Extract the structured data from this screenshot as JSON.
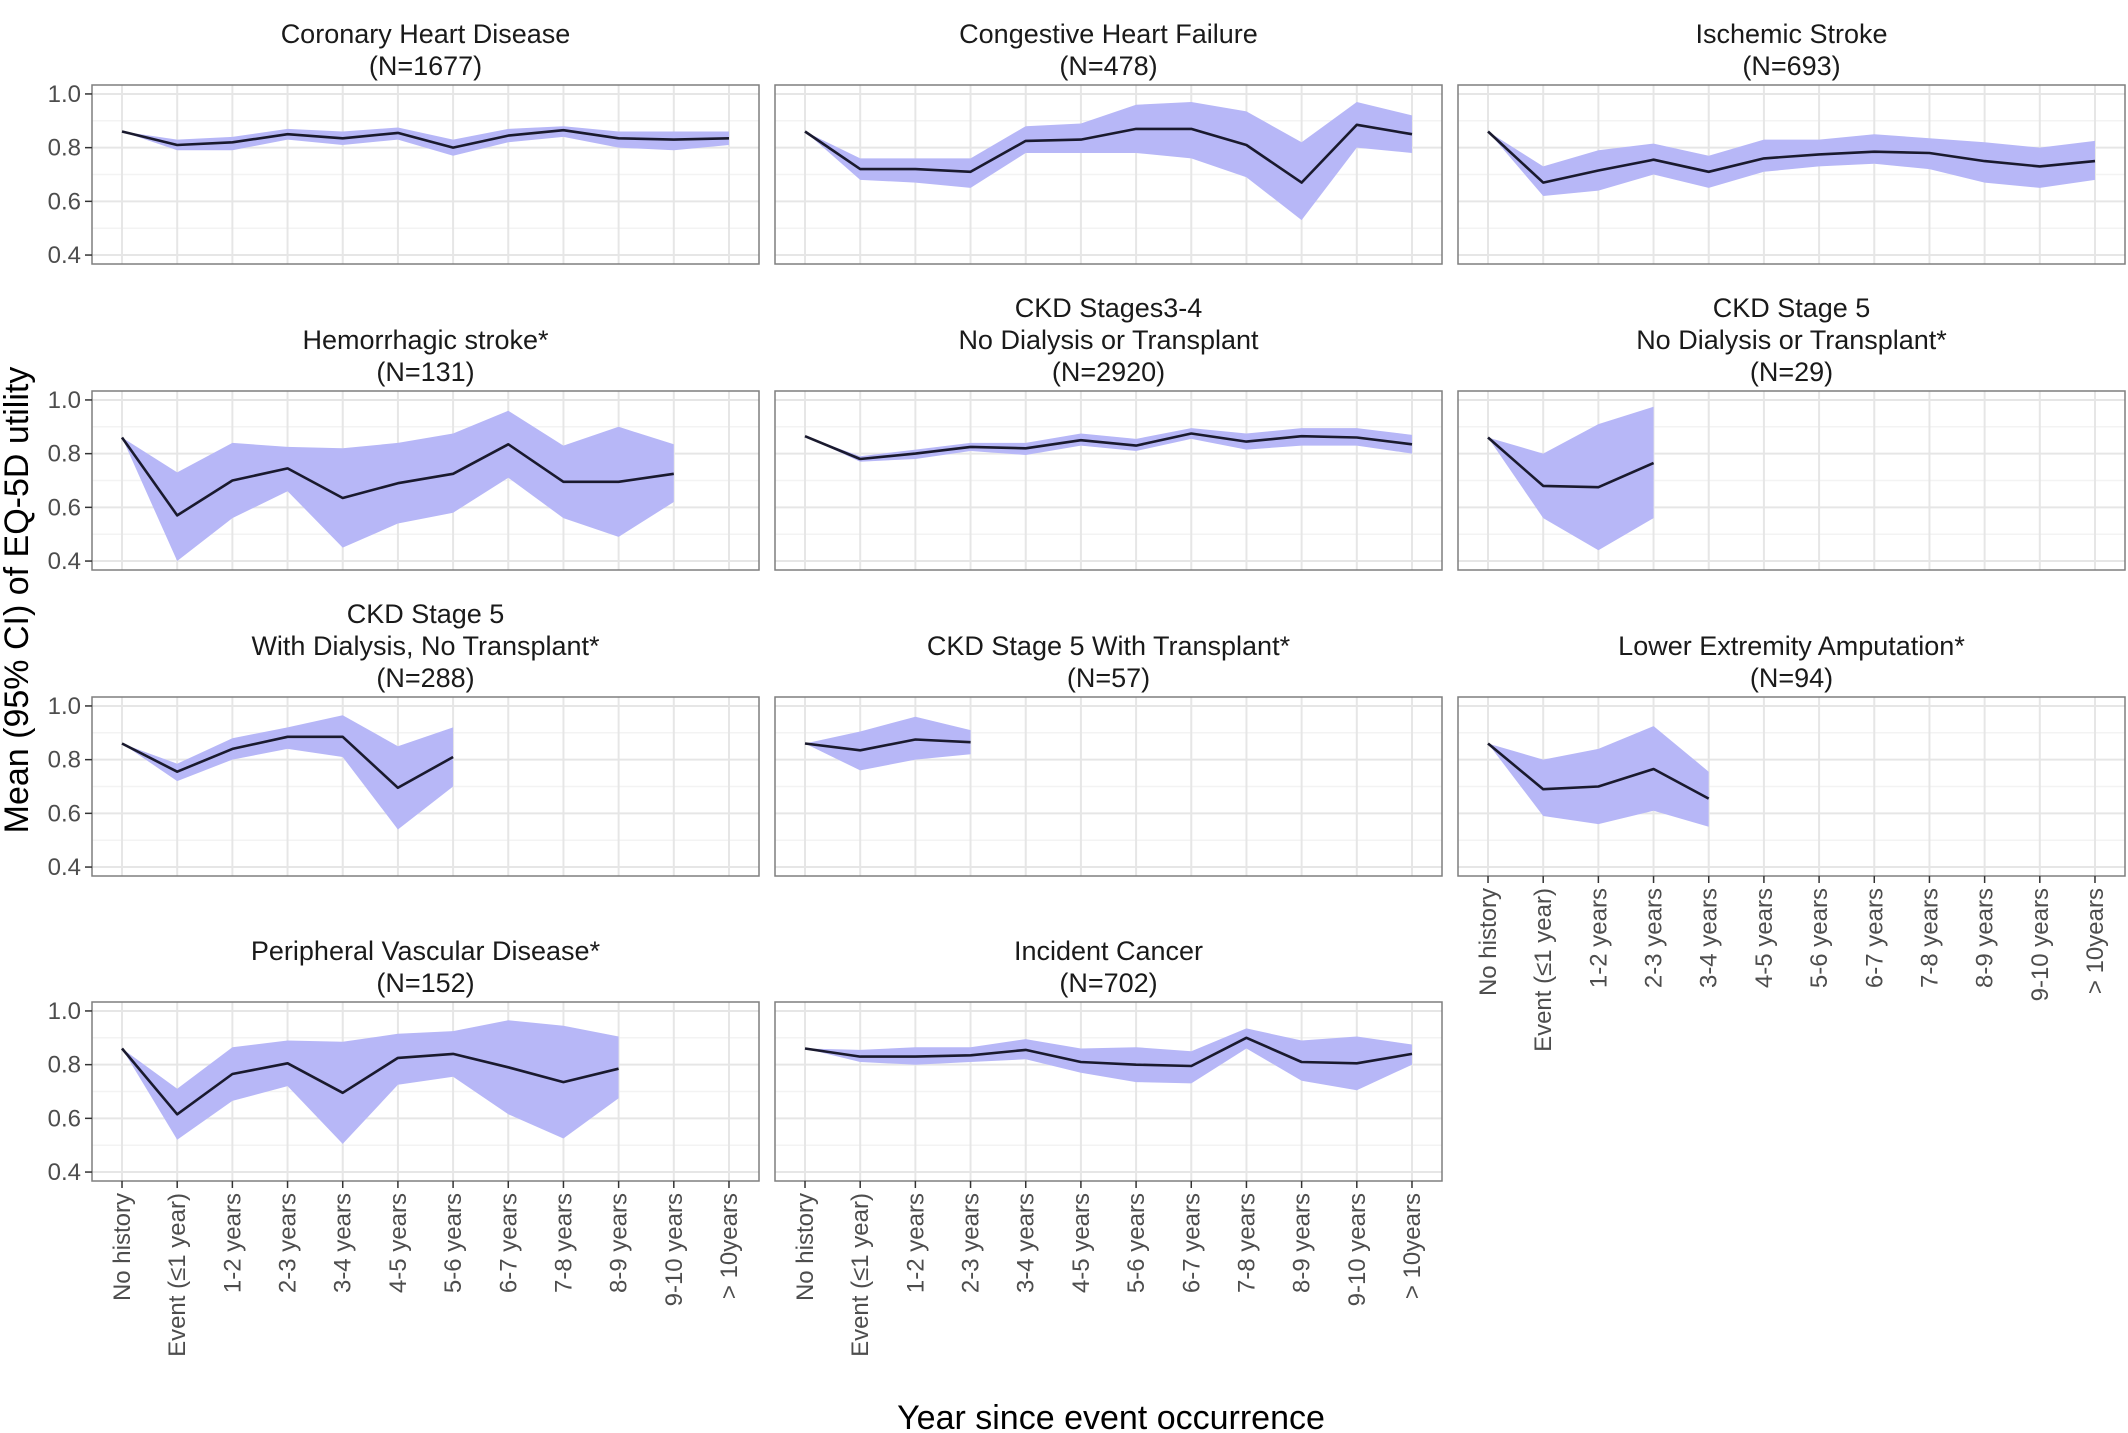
{
  "figure": {
    "xlabel": "Year since event occurrence",
    "ylabel": "Mean (95% CI) of EQ-5D utility",
    "colors": {
      "ribbon": "#b7b7f7",
      "line": "#1a1a2e",
      "panel_border": "#7f7f7f",
      "grid_major": "#e6e6e6",
      "grid_minor": "#f3f3f3"
    }
  },
  "chart_data": [
    {
      "type": "line",
      "title": "Coronary Heart Disease",
      "subtitle": "(N=1677)",
      "x": [
        "No history",
        "Event (≤1 year)",
        "1-2 years",
        "2-3 years",
        "3-4 years",
        "4-5 years",
        "5-6 years",
        "6-7 years",
        "7-8 years",
        "8-9 years",
        "9-10 years",
        "> 10years"
      ],
      "ylim": [
        0.4,
        1.0
      ],
      "yticks": [
        "0.4",
        "0.6",
        "0.8",
        "1.0"
      ],
      "series": [
        {
          "mean": [
            0.86,
            0.81,
            0.82,
            0.85,
            0.835,
            0.855,
            0.8,
            0.845,
            0.865,
            0.835,
            0.83,
            0.835
          ],
          "lower": [
            0.86,
            0.79,
            0.79,
            0.83,
            0.81,
            0.83,
            0.77,
            0.82,
            0.84,
            0.8,
            0.79,
            0.81
          ],
          "upper": [
            0.86,
            0.83,
            0.84,
            0.87,
            0.86,
            0.875,
            0.83,
            0.87,
            0.88,
            0.86,
            0.86,
            0.86
          ]
        }
      ],
      "grid": true
    },
    {
      "type": "line",
      "title": "Congestive Heart Failure",
      "subtitle": "(N=478)",
      "x": [
        "No history",
        "Event (≤1 year)",
        "1-2 years",
        "2-3 years",
        "3-4 years",
        "4-5 years",
        "5-6 years",
        "6-7 years",
        "7-8 years",
        "8-9 years",
        "9-10 years",
        "> 10years"
      ],
      "ylim": [
        0.4,
        1.0
      ],
      "yticks": [
        "0.4",
        "0.6",
        "0.8",
        "1.0"
      ],
      "series": [
        {
          "mean": [
            0.86,
            0.72,
            0.72,
            0.71,
            0.825,
            0.83,
            0.87,
            0.87,
            0.81,
            0.67,
            0.885,
            0.85
          ],
          "lower": [
            0.86,
            0.68,
            0.67,
            0.65,
            0.78,
            0.78,
            0.78,
            0.76,
            0.69,
            0.53,
            0.8,
            0.78
          ],
          "upper": [
            0.86,
            0.76,
            0.76,
            0.76,
            0.88,
            0.89,
            0.96,
            0.97,
            0.935,
            0.82,
            0.97,
            0.92
          ]
        }
      ],
      "grid": true
    },
    {
      "type": "line",
      "title": "Ischemic Stroke",
      "subtitle": "(N=693)",
      "x": [
        "No history",
        "Event (≤1 year)",
        "1-2 years",
        "2-3 years",
        "3-4 years",
        "4-5 years",
        "5-6 years",
        "6-7 years",
        "7-8 years",
        "8-9 years",
        "9-10 years",
        "> 10years"
      ],
      "ylim": [
        0.4,
        1.0
      ],
      "yticks": [
        "0.4",
        "0.6",
        "0.8",
        "1.0"
      ],
      "series": [
        {
          "mean": [
            0.86,
            0.67,
            0.715,
            0.755,
            0.71,
            0.76,
            0.775,
            0.785,
            0.78,
            0.75,
            0.73,
            0.75
          ],
          "lower": [
            0.86,
            0.62,
            0.64,
            0.7,
            0.65,
            0.71,
            0.73,
            0.74,
            0.72,
            0.67,
            0.65,
            0.68
          ],
          "upper": [
            0.86,
            0.73,
            0.79,
            0.815,
            0.77,
            0.83,
            0.83,
            0.85,
            0.835,
            0.82,
            0.8,
            0.825
          ]
        }
      ],
      "grid": true
    },
    {
      "type": "line",
      "title": "Hemorrhagic stroke*",
      "subtitle": "(N=131)",
      "x": [
        "No history",
        "Event (≤1 year)",
        "1-2 years",
        "2-3 years",
        "3-4 years",
        "4-5 years",
        "5-6 years",
        "6-7 years",
        "7-8 years",
        "8-9 years",
        "9-10 years",
        "> 10years"
      ],
      "ylim": [
        0.4,
        1.0
      ],
      "yticks": [
        "0.4",
        "0.6",
        "0.8",
        "1.0"
      ],
      "series": [
        {
          "mean": [
            0.86,
            0.57,
            0.7,
            0.745,
            0.635,
            0.69,
            0.725,
            0.835,
            0.695,
            0.695,
            0.725,
            null
          ],
          "lower": [
            0.86,
            0.4,
            0.56,
            0.66,
            0.45,
            0.54,
            0.58,
            0.71,
            0.56,
            0.49,
            0.62,
            null
          ],
          "upper": [
            0.86,
            0.73,
            0.84,
            0.825,
            0.82,
            0.84,
            0.875,
            0.96,
            0.83,
            0.9,
            0.835,
            null
          ]
        }
      ],
      "grid": true
    },
    {
      "type": "line",
      "title": "CKD Stages3-4\nNo Dialysis or Transplant",
      "subtitle": "(N=2920)",
      "x": [
        "No history",
        "Event (≤1 year)",
        "1-2 years",
        "2-3 years",
        "3-4 years",
        "4-5 years",
        "5-6 years",
        "6-7 years",
        "7-8 years",
        "8-9 years",
        "9-10 years",
        "> 10years"
      ],
      "ylim": [
        0.4,
        1.0
      ],
      "yticks": [
        "0.4",
        "0.6",
        "0.8",
        "1.0"
      ],
      "series": [
        {
          "mean": [
            0.865,
            0.78,
            0.8,
            0.825,
            0.82,
            0.85,
            0.83,
            0.875,
            0.845,
            0.865,
            0.86,
            0.835
          ],
          "lower": [
            0.865,
            0.77,
            0.78,
            0.81,
            0.795,
            0.83,
            0.81,
            0.855,
            0.815,
            0.83,
            0.83,
            0.8
          ],
          "upper": [
            0.865,
            0.79,
            0.815,
            0.84,
            0.84,
            0.875,
            0.855,
            0.895,
            0.875,
            0.895,
            0.895,
            0.87
          ]
        }
      ],
      "grid": true
    },
    {
      "type": "line",
      "title": "CKD Stage 5\nNo Dialysis or Transplant*",
      "subtitle": "(N=29)",
      "x": [
        "No history",
        "Event (≤1 year)",
        "1-2 years",
        "2-3 years",
        "3-4 years",
        "4-5 years",
        "5-6 years",
        "6-7 years",
        "7-8 years",
        "8-9 years",
        "9-10 years",
        "> 10years"
      ],
      "ylim": [
        0.4,
        1.0
      ],
      "yticks": [
        "0.4",
        "0.6",
        "0.8",
        "1.0"
      ],
      "series": [
        {
          "mean": [
            0.86,
            0.68,
            0.675,
            0.765,
            null,
            null,
            null,
            null,
            null,
            null,
            null,
            null
          ],
          "lower": [
            0.86,
            0.56,
            0.44,
            0.56,
            null,
            null,
            null,
            null,
            null,
            null,
            null,
            null
          ],
          "upper": [
            0.86,
            0.8,
            0.91,
            0.975,
            null,
            null,
            null,
            null,
            null,
            null,
            null,
            null
          ]
        }
      ],
      "grid": true
    },
    {
      "type": "line",
      "title": "CKD Stage 5\nWith Dialysis, No Transplant*",
      "subtitle": "(N=288)",
      "x": [
        "No history",
        "Event (≤1 year)",
        "1-2 years",
        "2-3 years",
        "3-4 years",
        "4-5 years",
        "5-6 years",
        "6-7 years",
        "7-8 years",
        "8-9 years",
        "9-10 years",
        "> 10years"
      ],
      "ylim": [
        0.4,
        1.0
      ],
      "yticks": [
        "0.4",
        "0.6",
        "0.8",
        "1.0"
      ],
      "series": [
        {
          "mean": [
            0.86,
            0.755,
            0.84,
            0.885,
            0.885,
            0.695,
            0.81,
            null,
            null,
            null,
            null,
            null
          ],
          "lower": [
            0.86,
            0.72,
            0.8,
            0.84,
            0.81,
            0.54,
            0.7,
            null,
            null,
            null,
            null,
            null
          ],
          "upper": [
            0.86,
            0.785,
            0.88,
            0.92,
            0.965,
            0.85,
            0.92,
            null,
            null,
            null,
            null,
            null
          ]
        }
      ],
      "grid": true
    },
    {
      "type": "line",
      "title": "CKD Stage 5 With Transplant*",
      "subtitle": "(N=57)",
      "x": [
        "No history",
        "Event (≤1 year)",
        "1-2 years",
        "2-3 years",
        "3-4 years",
        "4-5 years",
        "5-6 years",
        "6-7 years",
        "7-8 years",
        "8-9 years",
        "9-10 years",
        "> 10years"
      ],
      "ylim": [
        0.4,
        1.0
      ],
      "yticks": [
        "0.4",
        "0.6",
        "0.8",
        "1.0"
      ],
      "series": [
        {
          "mean": [
            0.86,
            0.835,
            0.875,
            0.865,
            null,
            null,
            null,
            null,
            null,
            null,
            null,
            null
          ],
          "lower": [
            0.86,
            0.76,
            0.8,
            0.82,
            null,
            null,
            null,
            null,
            null,
            null,
            null,
            null
          ],
          "upper": [
            0.86,
            0.905,
            0.96,
            0.91,
            null,
            null,
            null,
            null,
            null,
            null,
            null,
            null
          ]
        }
      ],
      "grid": true
    },
    {
      "type": "line",
      "title": "Lower Extremity Amputation*",
      "subtitle": "(N=94)",
      "x": [
        "No history",
        "Event (≤1 year)",
        "1-2 years",
        "2-3 years",
        "3-4 years",
        "4-5 years",
        "5-6 years",
        "6-7 years",
        "7-8 years",
        "8-9 years",
        "9-10 years",
        "> 10years"
      ],
      "ylim": [
        0.4,
        1.0
      ],
      "yticks": [
        "0.4",
        "0.6",
        "0.8",
        "1.0"
      ],
      "series": [
        {
          "mean": [
            0.86,
            0.69,
            0.7,
            0.765,
            0.655,
            null,
            null,
            null,
            null,
            null,
            null,
            null
          ],
          "lower": [
            0.86,
            0.59,
            0.56,
            0.61,
            0.55,
            null,
            null,
            null,
            null,
            null,
            null,
            null
          ],
          "upper": [
            0.86,
            0.8,
            0.84,
            0.925,
            0.755,
            null,
            null,
            null,
            null,
            null,
            null,
            null
          ]
        }
      ],
      "grid": true
    },
    {
      "type": "line",
      "title": "Peripheral Vascular Disease*",
      "subtitle": "(N=152)",
      "x": [
        "No history",
        "Event (≤1 year)",
        "1-2 years",
        "2-3 years",
        "3-4 years",
        "4-5 years",
        "5-6 years",
        "6-7 years",
        "7-8 years",
        "8-9 years",
        "9-10 years",
        "> 10years"
      ],
      "ylim": [
        0.4,
        1.0
      ],
      "yticks": [
        "0.4",
        "0.6",
        "0.8",
        "1.0"
      ],
      "series": [
        {
          "mean": [
            0.86,
            0.615,
            0.765,
            0.805,
            0.695,
            0.825,
            0.84,
            0.79,
            0.735,
            0.785,
            null,
            null
          ],
          "lower": [
            0.86,
            0.52,
            0.665,
            0.72,
            0.505,
            0.725,
            0.755,
            0.615,
            0.525,
            0.675,
            null,
            null
          ],
          "upper": [
            0.86,
            0.71,
            0.865,
            0.89,
            0.885,
            0.915,
            0.925,
            0.965,
            0.945,
            0.905,
            null,
            null
          ]
        }
      ],
      "grid": true
    },
    {
      "type": "line",
      "title": "Incident Cancer",
      "subtitle": "(N=702)",
      "x": [
        "No history",
        "Event (≤1 year)",
        "1-2 years",
        "2-3 years",
        "3-4 years",
        "4-5 years",
        "5-6 years",
        "6-7 years",
        "7-8 years",
        "8-9 years",
        "9-10 years",
        "> 10years"
      ],
      "ylim": [
        0.4,
        1.0
      ],
      "yticks": [
        "0.4",
        "0.6",
        "0.8",
        "1.0"
      ],
      "series": [
        {
          "mean": [
            0.86,
            0.83,
            0.83,
            0.835,
            0.855,
            0.81,
            0.8,
            0.795,
            0.9,
            0.81,
            0.805,
            0.84
          ],
          "lower": [
            0.86,
            0.81,
            0.8,
            0.81,
            0.82,
            0.77,
            0.735,
            0.73,
            0.86,
            0.74,
            0.705,
            0.8
          ],
          "upper": [
            0.86,
            0.855,
            0.865,
            0.865,
            0.895,
            0.86,
            0.865,
            0.85,
            0.935,
            0.89,
            0.905,
            0.875
          ]
        }
      ],
      "grid": true
    }
  ]
}
